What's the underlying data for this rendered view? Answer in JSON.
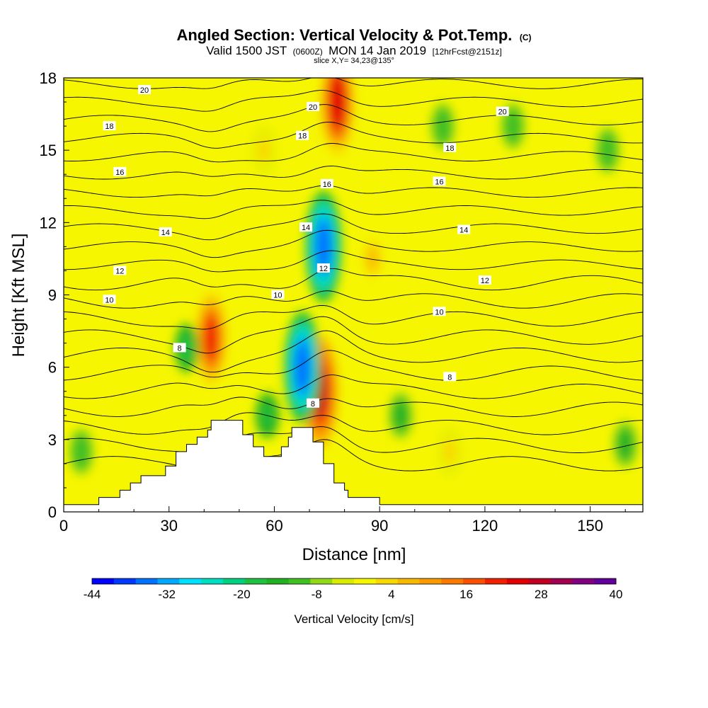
{
  "title": {
    "main": "Angled Section: Vertical Velocity & Pot.Temp.",
    "main_unit": "(C)",
    "valid_a": "Valid 1500 JST",
    "valid_b": "(0600Z)",
    "valid_c": "MON 14 Jan 2019",
    "valid_d": "[12hrFcst@2151z]",
    "slice": "slice X,Y= 34,23@135°"
  },
  "chart_data": {
    "type": "heatmap",
    "xlabel": "Distance [nm]",
    "ylabel": "Height [Kft MSL]",
    "xlim": [
      0,
      165
    ],
    "ylim": [
      0,
      18
    ],
    "xticks": [
      0,
      30,
      60,
      90,
      120,
      150
    ],
    "yticks": [
      0,
      3,
      6,
      9,
      12,
      15,
      18
    ],
    "colorbar": {
      "title": "Vertical Velocity [cm/s]",
      "min": -44,
      "max": 40,
      "step": 4,
      "tick_labels": [
        "-44",
        "-32",
        "-20",
        "-8",
        "4",
        "16",
        "28",
        "40"
      ],
      "colors": [
        "#0000ff",
        "#0038ff",
        "#0070ff",
        "#00a8ff",
        "#00e0ff",
        "#00ddc0",
        "#00d080",
        "#20c040",
        "#20b020",
        "#40c020",
        "#90d818",
        "#d8ec00",
        "#f6f600",
        "#f8d800",
        "#f8b800",
        "#f89a00",
        "#f87a00",
        "#f85000",
        "#f02000",
        "#e00000",
        "#c00020",
        "#a00050",
        "#800080",
        "#600098"
      ]
    },
    "terrain": [
      [
        0,
        0.3
      ],
      [
        10,
        0.3
      ],
      [
        10,
        0.6
      ],
      [
        16,
        0.6
      ],
      [
        16,
        0.9
      ],
      [
        19,
        0.9
      ],
      [
        19,
        1.2
      ],
      [
        22,
        1.2
      ],
      [
        22,
        1.5
      ],
      [
        29,
        1.5
      ],
      [
        29,
        1.9
      ],
      [
        32,
        1.9
      ],
      [
        32,
        2.5
      ],
      [
        35,
        2.5
      ],
      [
        35,
        2.8
      ],
      [
        38,
        2.8
      ],
      [
        38,
        3.1
      ],
      [
        41,
        3.1
      ],
      [
        41,
        3.4
      ],
      [
        42,
        3.4
      ],
      [
        42,
        3.8
      ],
      [
        51,
        3.8
      ],
      [
        51,
        3.2
      ],
      [
        54,
        3.2
      ],
      [
        54,
        2.7
      ],
      [
        57,
        2.7
      ],
      [
        57,
        2.3
      ],
      [
        62,
        2.3
      ],
      [
        62,
        2.7
      ],
      [
        64,
        2.7
      ],
      [
        64,
        3.1
      ],
      [
        65,
        3.1
      ],
      [
        65,
        3.5
      ],
      [
        71,
        3.5
      ],
      [
        71,
        2.9
      ],
      [
        74,
        2.9
      ],
      [
        74,
        2.0
      ],
      [
        77,
        2.0
      ],
      [
        77,
        1.2
      ],
      [
        80,
        1.2
      ],
      [
        80,
        0.9
      ],
      [
        81,
        0.9
      ],
      [
        81,
        0.6
      ],
      [
        90,
        0.6
      ],
      [
        90,
        0.3
      ],
      [
        165,
        0.3
      ]
    ],
    "theta_contours": [
      {
        "label": "8",
        "label_at": [
          [
            33,
            6.8
          ],
          [
            71,
            4.5
          ],
          [
            110,
            5.6
          ]
        ]
      },
      {
        "label": "10",
        "label_at": [
          [
            13,
            8.8
          ],
          [
            61,
            9.0
          ],
          [
            107,
            8.3
          ]
        ]
      },
      {
        "label": "12",
        "label_at": [
          [
            16,
            10.0
          ],
          [
            74,
            10.1
          ],
          [
            120,
            9.6
          ]
        ]
      },
      {
        "label": "14",
        "label_at": [
          [
            29,
            11.6
          ],
          [
            69,
            11.8
          ],
          [
            114,
            11.7
          ]
        ]
      },
      {
        "label": "16",
        "label_at": [
          [
            16,
            14.1
          ],
          [
            75,
            13.6
          ],
          [
            107,
            13.7
          ]
        ]
      },
      {
        "label": "18",
        "label_at": [
          [
            13,
            16.0
          ],
          [
            68,
            15.6
          ],
          [
            110,
            15.1
          ]
        ]
      },
      {
        "label": "20",
        "label_at": [
          [
            23,
            17.5
          ],
          [
            71,
            16.8
          ],
          [
            125,
            16.6
          ]
        ]
      }
    ],
    "w_features": [
      {
        "x": 42,
        "y": 7.2,
        "peak": 30
      },
      {
        "x": 73,
        "y": 5.0,
        "peak": 36
      },
      {
        "x": 78,
        "y": 17.0,
        "peak": 34
      },
      {
        "x": 35,
        "y": 6.8,
        "peak": -16
      },
      {
        "x": 68,
        "y": 6.0,
        "peak": -36
      },
      {
        "x": 74,
        "y": 11.0,
        "peak": -36
      },
      {
        "x": 58,
        "y": 4.0,
        "peak": -14
      },
      {
        "x": 96,
        "y": 4.0,
        "peak": -10
      },
      {
        "x": 88,
        "y": 10.5,
        "peak": 14
      },
      {
        "x": 160,
        "y": 2.8,
        "peak": -10
      },
      {
        "x": 108,
        "y": 16.0,
        "peak": -8
      },
      {
        "x": 128,
        "y": 16.0,
        "peak": -8
      },
      {
        "x": 155,
        "y": 15.0,
        "peak": -7
      },
      {
        "x": 110,
        "y": 2.5,
        "peak": 10
      },
      {
        "x": 5,
        "y": 2.5,
        "peak": -8
      },
      {
        "x": 57,
        "y": 15.0,
        "peak": 10
      }
    ]
  }
}
